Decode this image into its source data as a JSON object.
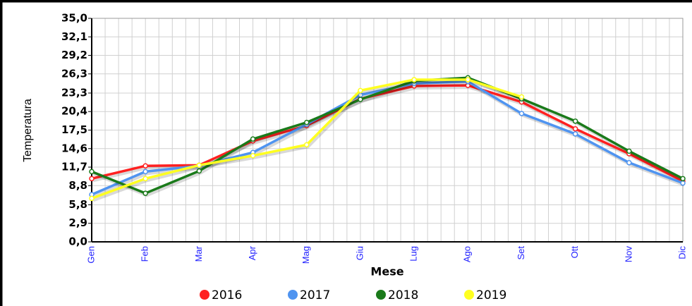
{
  "chart_data": {
    "type": "line",
    "y_label": "Temperatura",
    "x_label": "Mese",
    "categories": [
      "Gen",
      "Feb",
      "Mar",
      "Apr",
      "Mag",
      "Giu",
      "Lug",
      "Ago",
      "Set",
      "Ott",
      "Nov",
      "Dic"
    ],
    "series": [
      {
        "name": "2016",
        "color": "#ff2020",
        "values": [
          9.9,
          11.9,
          12.0,
          15.8,
          18.2,
          22.4,
          24.4,
          24.5,
          21.9,
          17.7,
          13.8,
          9.5
        ]
      },
      {
        "name": "2017",
        "color": "#4f94f0",
        "values": [
          7.4,
          11.0,
          11.9,
          14.0,
          18.4,
          23.0,
          24.8,
          25.1,
          20.1,
          16.9,
          12.4,
          9.2
        ]
      },
      {
        "name": "2018",
        "color": "#1a7a1a",
        "values": [
          11.0,
          7.6,
          11.1,
          16.1,
          18.7,
          22.3,
          25.2,
          25.7,
          22.4,
          18.9,
          14.2,
          9.9
        ]
      },
      {
        "name": "2019",
        "color": "#ffff20",
        "values": [
          6.8,
          9.9,
          12.0,
          13.5,
          15.2,
          23.7,
          25.4,
          25.4,
          22.7,
          null,
          null,
          null
        ]
      }
    ],
    "ylim": [
      0,
      35
    ],
    "yticks": [
      {
        "value": 0,
        "label": "0,0"
      },
      {
        "value": 2.9,
        "label": "2,9"
      },
      {
        "value": 5.8,
        "label": "5,8"
      },
      {
        "value": 8.8,
        "label": "8,8"
      },
      {
        "value": 11.7,
        "label": "11,7"
      },
      {
        "value": 14.6,
        "label": "14,6"
      },
      {
        "value": 17.5,
        "label": "17,5"
      },
      {
        "value": 20.4,
        "label": "20,4"
      },
      {
        "value": 23.3,
        "label": "23,3"
      },
      {
        "value": 26.3,
        "label": "26,3"
      },
      {
        "value": 29.2,
        "label": "29,2"
      },
      {
        "value": 32.1,
        "label": "32,1"
      },
      {
        "value": 35,
        "label": "35,0"
      }
    ],
    "grid": true
  }
}
